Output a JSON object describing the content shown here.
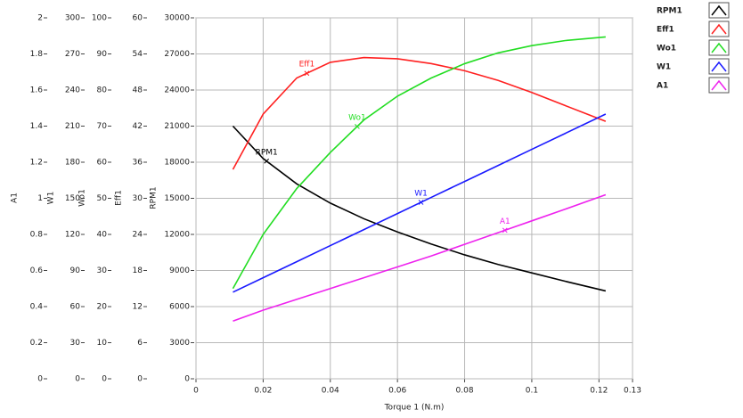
{
  "chart_data": {
    "type": "line",
    "xlabel": "Torque 1 (N.m)",
    "xlim": [
      0,
      0.13
    ],
    "xticks": [
      0,
      0.02,
      0.04,
      0.06,
      0.08,
      0.1,
      0.12,
      0.13
    ],
    "grid": true,
    "axes": [
      {
        "label": "A1",
        "lim": [
          0,
          2
        ],
        "ticks": [
          0,
          0.2,
          0.4,
          0.6,
          0.8,
          1,
          1.2,
          1.4,
          1.6,
          1.8,
          2
        ]
      },
      {
        "label": "W1",
        "lim": [
          0,
          300
        ],
        "ticks": [
          0,
          30,
          60,
          90,
          120,
          150,
          180,
          210,
          240,
          270,
          300
        ]
      },
      {
        "label": "Wo1",
        "lim": [
          0,
          100
        ],
        "ticks": [
          0,
          10,
          20,
          30,
          40,
          50,
          60,
          70,
          80,
          90,
          100
        ]
      },
      {
        "label": "Eff1",
        "lim": [
          0,
          60
        ],
        "ticks": [
          0,
          6,
          12,
          18,
          24,
          30,
          36,
          42,
          48,
          54,
          60
        ]
      },
      {
        "label": "RPM1",
        "lim": [
          0,
          30000
        ],
        "ticks": [
          0,
          3000,
          6000,
          9000,
          12000,
          15000,
          18000,
          21000,
          24000,
          27000,
          30000
        ]
      }
    ],
    "x": [
      0.011,
      0.02,
      0.03,
      0.04,
      0.05,
      0.06,
      0.07,
      0.08,
      0.09,
      0.1,
      0.11,
      0.122
    ],
    "series": [
      {
        "name": "RPM1",
        "color": "#000000",
        "axis": 4,
        "cursor_x": 0.021,
        "values": [
          21000,
          18300,
          16200,
          14600,
          13300,
          12200,
          11200,
          10300,
          9500,
          8800,
          8100,
          7300
        ]
      },
      {
        "name": "Eff1",
        "color": "#ff2020",
        "axis": 3,
        "cursor_x": 0.033,
        "values": [
          34.8,
          44,
          50,
          52.6,
          53.4,
          53.2,
          52.4,
          51.2,
          49.6,
          47.6,
          45.4,
          42.8
        ]
      },
      {
        "name": "Wo1",
        "color": "#22dd22",
        "axis": 2,
        "cursor_x": 0.048,
        "values": [
          25,
          40,
          52.7,
          62.7,
          71.7,
          78.3,
          83.3,
          87.3,
          90.3,
          92.3,
          93.7,
          94.7
        ]
      },
      {
        "name": "W1",
        "color": "#1a1aff",
        "axis": 1,
        "cursor_x": 0.067,
        "values": [
          72,
          84,
          97.3,
          110.7,
          124,
          137.3,
          150.7,
          164,
          177.3,
          190.7,
          204,
          220
        ]
      },
      {
        "name": "A1",
        "color": "#ee22ee",
        "axis": 0,
        "cursor_x": 0.092,
        "values": [
          0.32,
          0.38,
          0.44,
          0.5,
          0.56,
          0.62,
          0.68,
          0.745,
          0.81,
          0.875,
          0.94,
          1.02
        ]
      }
    ]
  }
}
